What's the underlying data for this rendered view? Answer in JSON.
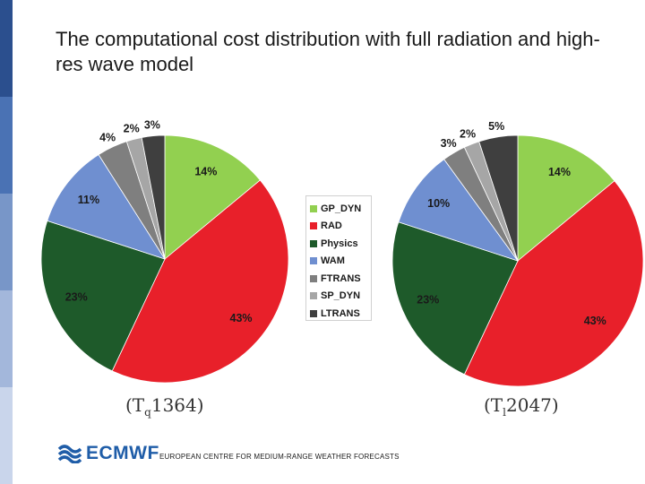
{
  "slide": {
    "title": "The computational cost distribution with full radiation and high-res wave model",
    "footer": "EUROPEAN CENTRE FOR MEDIUM-RANGE WEATHER FORECASTS",
    "logo_text": "ECMWF",
    "strip_colors": [
      "#2b4f8e",
      "#4a72b4",
      "#7896c8",
      "#a3b7db",
      "#c9d5eb"
    ]
  },
  "chart_data": [
    {
      "type": "pie",
      "caption_main": "(T",
      "caption_sub": "q",
      "caption_tail": "1364)",
      "categories": [
        "GP_DYN",
        "RAD",
        "Physics",
        "WAM",
        "FTRANS",
        "SP_DYN",
        "LTRANS"
      ],
      "values": [
        14,
        43,
        23,
        11,
        4,
        2,
        3
      ],
      "labels": [
        "14%",
        "43%",
        "23%",
        "11%",
        "4%",
        "2%",
        "3%"
      ],
      "colors": [
        "#92d050",
        "#e8202a",
        "#1e5a2a",
        "#6f8fd0",
        "#7f7f7f",
        "#a6a6a6",
        "#3f3f3f"
      ]
    },
    {
      "type": "pie",
      "caption_main": "(T",
      "caption_sub": "l",
      "caption_tail": "2047)",
      "categories": [
        "GP_DYN",
        "RAD",
        "Physics",
        "WAM",
        "FTRANS",
        "SP_DYN",
        "LTRANS"
      ],
      "values": [
        14,
        43,
        23,
        10,
        3,
        2,
        5
      ],
      "labels": [
        "14%",
        "43%",
        "23%",
        "10%",
        "3%",
        "2%",
        "5%"
      ],
      "colors": [
        "#92d050",
        "#e8202a",
        "#1e5a2a",
        "#6f8fd0",
        "#7f7f7f",
        "#a6a6a6",
        "#3f3f3f"
      ]
    }
  ],
  "legend": {
    "placement": "center",
    "items": [
      {
        "label": "GP_DYN",
        "color": "#92d050"
      },
      {
        "label": "RAD",
        "color": "#e8202a"
      },
      {
        "label": "Physics",
        "color": "#1e5a2a"
      },
      {
        "label": "WAM",
        "color": "#6f8fd0"
      },
      {
        "label": "FTRANS",
        "color": "#7f7f7f"
      },
      {
        "label": "SP_DYN",
        "color": "#a6a6a6"
      },
      {
        "label": "LTRANS",
        "color": "#3f3f3f"
      }
    ]
  }
}
